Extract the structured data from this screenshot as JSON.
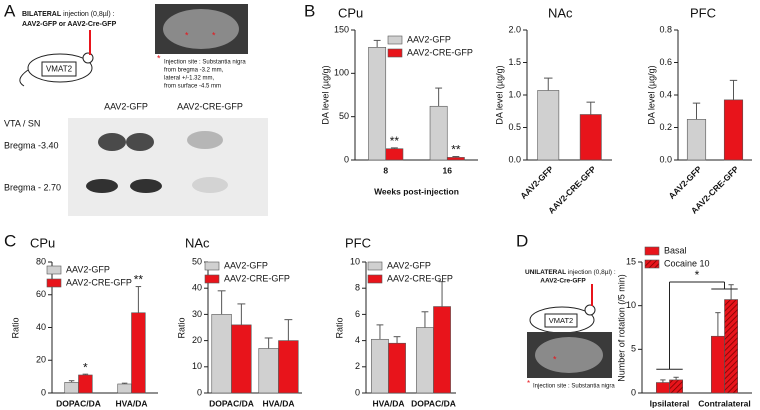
{
  "panel_labels": [
    "A",
    "B",
    "C",
    "D"
  ],
  "panel_a": {
    "injection_prefix": "BILATERAL",
    "injection_rest": " injection (0,8µl) :",
    "vectors": "AAV2-GFP or AAV2-Cre-GFP",
    "mouse_label": "VMAT2",
    "site_marker": "*",
    "site_title": "Injection site : Substantia nigra",
    "site_details": [
      "from bregma -3.2 mm,",
      "lateral +/-1.32 mm,",
      "from surface -4.5 mm"
    ],
    "columns": [
      "AAV2-GFP",
      "AAV2-CRE-GFP"
    ],
    "region": "VTA / SN",
    "rows": [
      "Bregma -3.40",
      "Bregma - 2.70"
    ]
  },
  "panel_d": {
    "injection_prefix": "UNILATERAL",
    "injection_rest": " injection (0,8µl) :",
    "vector": "AAV2-Cre-GFP",
    "mouse_label": "VMAT2",
    "site_marker": "*",
    "site_title": "Injection site : Substantia nigra"
  },
  "chart_data": [
    {
      "type": "bar",
      "title": "CPu",
      "y_label": "DA level (µg/g)",
      "x_label": "Weeks post-injection",
      "categories": [
        "8",
        "16"
      ],
      "series": [
        {
          "name": "AAV2-GFP",
          "color": "#d0d0d0",
          "values": [
            130,
            62
          ],
          "errors": [
            8,
            21
          ]
        },
        {
          "name": "AAV2-CRE-GFP",
          "color": "#e8141b",
          "values": [
            13,
            3
          ],
          "errors": [
            1,
            1
          ]
        }
      ],
      "ylim": [
        0,
        150
      ],
      "yticks": [
        0,
        50,
        100,
        150
      ],
      "annotations": [
        {
          "text": "**",
          "category": "8",
          "series": "AAV2-CRE-GFP"
        },
        {
          "text": "**",
          "category": "16",
          "series": "AAV2-CRE-GFP"
        }
      ]
    },
    {
      "type": "bar",
      "title": "NAc",
      "y_label": "DA level (µg/g)",
      "categories": [
        "AAV2-GFP",
        "AAV2-CRE-GFP"
      ],
      "rotated_labels": true,
      "series": [
        {
          "color": "#d0d0d0",
          "values": [
            1.07,
            null
          ],
          "errors": [
            0.19,
            null
          ]
        },
        {
          "color": "#e8141b",
          "values": [
            null,
            0.7
          ],
          "errors": [
            null,
            0.19
          ]
        }
      ],
      "ylim": [
        0,
        2
      ],
      "yticks": [
        {
          "value": 0,
          "label": "0.0"
        },
        0.5,
        {
          "value": 1,
          "label": "1.0"
        },
        1.5,
        {
          "value": 2,
          "label": "2.0"
        }
      ]
    },
    {
      "type": "bar",
      "title": "PFC",
      "y_label": "DA level (µg/g)",
      "categories": [
        "AAV2-GFP",
        "AAV2-CRE-GFP"
      ],
      "rotated_labels": true,
      "series": [
        {
          "color": "#d0d0d0",
          "values": [
            0.25,
            null
          ],
          "errors": [
            0.1,
            null
          ]
        },
        {
          "color": "#e8141b",
          "values": [
            null,
            0.37
          ],
          "errors": [
            null,
            0.12
          ]
        }
      ],
      "ylim": [
        0,
        0.8
      ],
      "yticks": [
        {
          "value": 0,
          "label": "0.0"
        },
        0.2,
        0.4,
        0.6,
        0.8
      ]
    },
    {
      "type": "bar",
      "title": "CPu",
      "y_label": "Ratio",
      "categories": [
        "DOPAC/DA",
        "HVA/DA"
      ],
      "series": [
        {
          "name": "AAV2-GFP",
          "color": "#d0d0d0",
          "values": [
            6.5,
            5.5
          ],
          "errors": [
            1,
            0.5
          ]
        },
        {
          "name": "AAV2-CRE-GFP",
          "color": "#e8141b",
          "values": [
            11,
            49
          ],
          "errors": [
            0.5,
            16
          ]
        }
      ],
      "ylim": [
        0,
        80
      ],
      "yticks": [
        0,
        20,
        40,
        60,
        80
      ],
      "annotations": [
        {
          "text": "*",
          "category": "DOPAC/DA",
          "series": "AAV2-CRE-GFP"
        },
        {
          "text": "**",
          "category": "HVA/DA",
          "series": "AAV2-CRE-GFP"
        }
      ]
    },
    {
      "type": "bar",
      "title": "NAc",
      "y_label": "Ratio",
      "categories": [
        "DOPAC/DA",
        "HVA/DA"
      ],
      "series": [
        {
          "name": "AAV2-GFP",
          "color": "#d0d0d0",
          "values": [
            30,
            17
          ],
          "errors": [
            9,
            4
          ]
        },
        {
          "name": "AAV2-CRE-GFP",
          "color": "#e8141b",
          "values": [
            26,
            20
          ],
          "errors": [
            8,
            8
          ]
        }
      ],
      "ylim": [
        0,
        50
      ],
      "yticks": [
        0,
        10,
        20,
        30,
        40,
        50
      ]
    },
    {
      "type": "bar",
      "title": "PFC",
      "y_label": "Ratio",
      "categories": [
        "HVA/DA",
        "DOPAC/DA"
      ],
      "series": [
        {
          "name": "AAV2-GFP",
          "color": "#d0d0d0",
          "values": [
            4.1,
            5
          ],
          "errors": [
            1.1,
            1.2
          ]
        },
        {
          "name": "AAV2-CRE-GFP",
          "color": "#e8141b",
          "values": [
            3.8,
            6.6
          ],
          "errors": [
            0.5,
            1.9
          ]
        }
      ],
      "ylim": [
        0,
        10
      ],
      "yticks": [
        0,
        2,
        4,
        6,
        8,
        10
      ]
    },
    {
      "type": "bar",
      "y_label": "Number of rotation (/5 min)",
      "categories": [
        "Ipsilateral",
        "Contralateral"
      ],
      "series": [
        {
          "name": "Basal",
          "color": "#e8141b",
          "values": [
            1.2,
            6.5
          ],
          "errors": [
            0.3,
            2.7
          ]
        },
        {
          "name": "Cocaine 10",
          "color": "#e8141b",
          "hatch": true,
          "values": [
            1.5,
            10.7
          ],
          "errors": [
            0.3,
            1.7
          ]
        }
      ],
      "ylim": [
        0,
        15
      ],
      "yticks": [
        0,
        5,
        10,
        15
      ],
      "annotations": [
        {
          "text": "*",
          "between": [
            "Ipsilateral",
            "Contralateral"
          ]
        }
      ]
    }
  ]
}
